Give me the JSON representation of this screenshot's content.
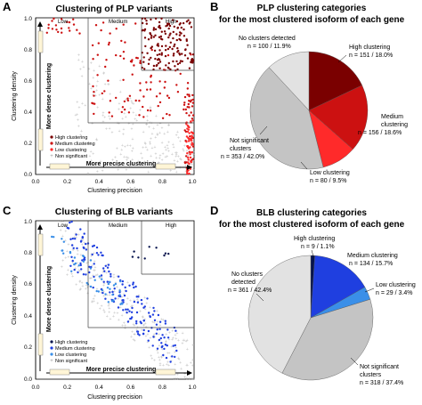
{
  "colors": {
    "plp": {
      "high": "#7a0000",
      "medium": "#cc1111",
      "low": "#ff2a2a",
      "nonsig": "#c4c4c4",
      "none": "#e2e2e2"
    },
    "blb": {
      "high": "#06134d",
      "medium": "#1f3fe0",
      "low": "#3a8fe8",
      "nonsig": "#c4c4c4",
      "none": "#e2e2e2"
    }
  },
  "panels": {
    "A": {
      "letter": "A",
      "title": "Clustering of PLP variants",
      "xlabel": "Clustering precision",
      "ylabel": "Clustering density",
      "x_ticks": [
        "0.0",
        "0.2",
        "0.4",
        "0.6",
        "0.8",
        "1.0"
      ],
      "y_ticks": [
        "0.0",
        "0.2",
        "0.4",
        "0.6",
        "0.8",
        "1.0"
      ],
      "regions": [
        "Low",
        "Medium",
        "High"
      ],
      "arrow_x_label": "More precise clustering",
      "arrow_y_label": "More dense clustering",
      "legend": [
        "High clustering",
        "Medium clustering",
        "Low clustering",
        "Non significant"
      ]
    },
    "B": {
      "letter": "B",
      "title_line1": "PLP clustering categories",
      "title_line2": "for the most clustered isoform of each gene",
      "slices": [
        {
          "label1": "High clustering",
          "label2": "n = 151 / 18.0%"
        },
        {
          "label1": "Medium",
          "label2": "clustering",
          "label3": "n = 156 / 18.6%"
        },
        {
          "label1": "Low clustering",
          "label2": "n = 80 / 9.5%"
        },
        {
          "label1": "Not significant",
          "label2": "clusters",
          "label3": "n = 353 / 42.0%"
        },
        {
          "label1": "No clusters detected",
          "label2": "n = 100 / 11.9%"
        }
      ]
    },
    "C": {
      "letter": "C",
      "title": "Clustering of BLB variants",
      "xlabel": "Clustering precision",
      "ylabel": "Clustering density",
      "x_ticks": [
        "0.0",
        "0.2",
        "0.4",
        "0.6",
        "0.8",
        "1.0"
      ],
      "y_ticks": [
        "0.0",
        "0.2",
        "0.4",
        "0.6",
        "0.8",
        "1.0"
      ],
      "regions": [
        "Low",
        "Medium",
        "High"
      ],
      "arrow_x_label": "More precise clustering",
      "arrow_y_label": "More dense clustering",
      "legend": [
        "High clustering",
        "Medium clustering",
        "Low clustering",
        "Non significant"
      ]
    },
    "D": {
      "letter": "D",
      "title_line1": "BLB clustering categories",
      "title_line2": "for the most clustered isoform of each gene",
      "slices": [
        {
          "label1": "High clustering",
          "label2": "n = 9 / 1.1%"
        },
        {
          "label1": "Medium clustering",
          "label2": "n = 134 / 15.7%"
        },
        {
          "label1": "Low clustering",
          "label2": "n = 29 / 3.4%"
        },
        {
          "label1": "Not significant",
          "label2": "clusters",
          "label3": "n = 318 / 37.4%"
        },
        {
          "label1": "No clusters",
          "label2": "detected",
          "label3": "n = 361 / 42.4%"
        }
      ]
    }
  },
  "chart_data": [
    {
      "type": "scatter",
      "title": "Clustering of PLP variants",
      "xlabel": "Clustering precision",
      "ylabel": "Clustering density",
      "xlim": [
        0,
        1
      ],
      "ylim": [
        0,
        1
      ],
      "region_thresholds": {
        "x": [
          0.333,
          0.667
        ],
        "y": [
          0.333,
          0.667
        ]
      },
      "series": [
        {
          "name": "High clustering",
          "approx_points": 160,
          "x_range": [
            0.67,
            1.0
          ],
          "y_range": [
            0.67,
            1.0
          ]
        },
        {
          "name": "Medium clustering",
          "approx_points": 160,
          "x_range": [
            0.33,
            1.0
          ],
          "y_range": [
            0.33,
            1.0
          ]
        },
        {
          "name": "Low clustering",
          "approx_points": 80,
          "x_range": [
            0.0,
            1.0
          ],
          "y_range": [
            0.0,
            0.4
          ]
        },
        {
          "name": "Non significant",
          "approx_points": 350,
          "x_range": [
            0.2,
            1.0
          ],
          "y_range": [
            0.0,
            0.9
          ]
        }
      ]
    },
    {
      "type": "pie",
      "title": "PLP clustering categories for the most clustered isoform of each gene",
      "categories": [
        "High clustering",
        "Medium clustering",
        "Low clustering",
        "Not significant clusters",
        "No clusters detected"
      ],
      "values": [
        151,
        156,
        80,
        353,
        100
      ],
      "percent": [
        18.0,
        18.6,
        9.5,
        42.0,
        11.9
      ]
    },
    {
      "type": "scatter",
      "title": "Clustering of BLB variants",
      "xlabel": "Clustering precision",
      "ylabel": "Clustering density",
      "xlim": [
        0,
        1
      ],
      "ylim": [
        0,
        1
      ],
      "region_thresholds": {
        "x": [
          0.333,
          0.667
        ],
        "y": [
          0.333,
          0.667
        ]
      },
      "series": [
        {
          "name": "High clustering",
          "approx_points": 9,
          "x_range": [
            0.67,
            1.0
          ],
          "y_range": [
            0.67,
            1.0
          ]
        },
        {
          "name": "Medium clustering",
          "approx_points": 134,
          "x_range": [
            0.2,
            0.9
          ],
          "y_range": [
            0.3,
            0.95
          ]
        },
        {
          "name": "Low clustering",
          "approx_points": 29,
          "x_range": [
            0.0,
            0.5
          ],
          "y_range": [
            0.5,
            0.95
          ]
        },
        {
          "name": "Non significant",
          "approx_points": 318,
          "x_range": [
            0.1,
            1.0
          ],
          "y_range": [
            0.0,
            0.85
          ]
        }
      ]
    },
    {
      "type": "pie",
      "title": "BLB clustering categories for the most clustered isoform of each gene",
      "categories": [
        "High clustering",
        "Medium clustering",
        "Low clustering",
        "Not significant clusters",
        "No clusters detected"
      ],
      "values": [
        9,
        134,
        29,
        318,
        361
      ],
      "percent": [
        1.1,
        15.7,
        3.4,
        37.4,
        42.4
      ]
    }
  ]
}
